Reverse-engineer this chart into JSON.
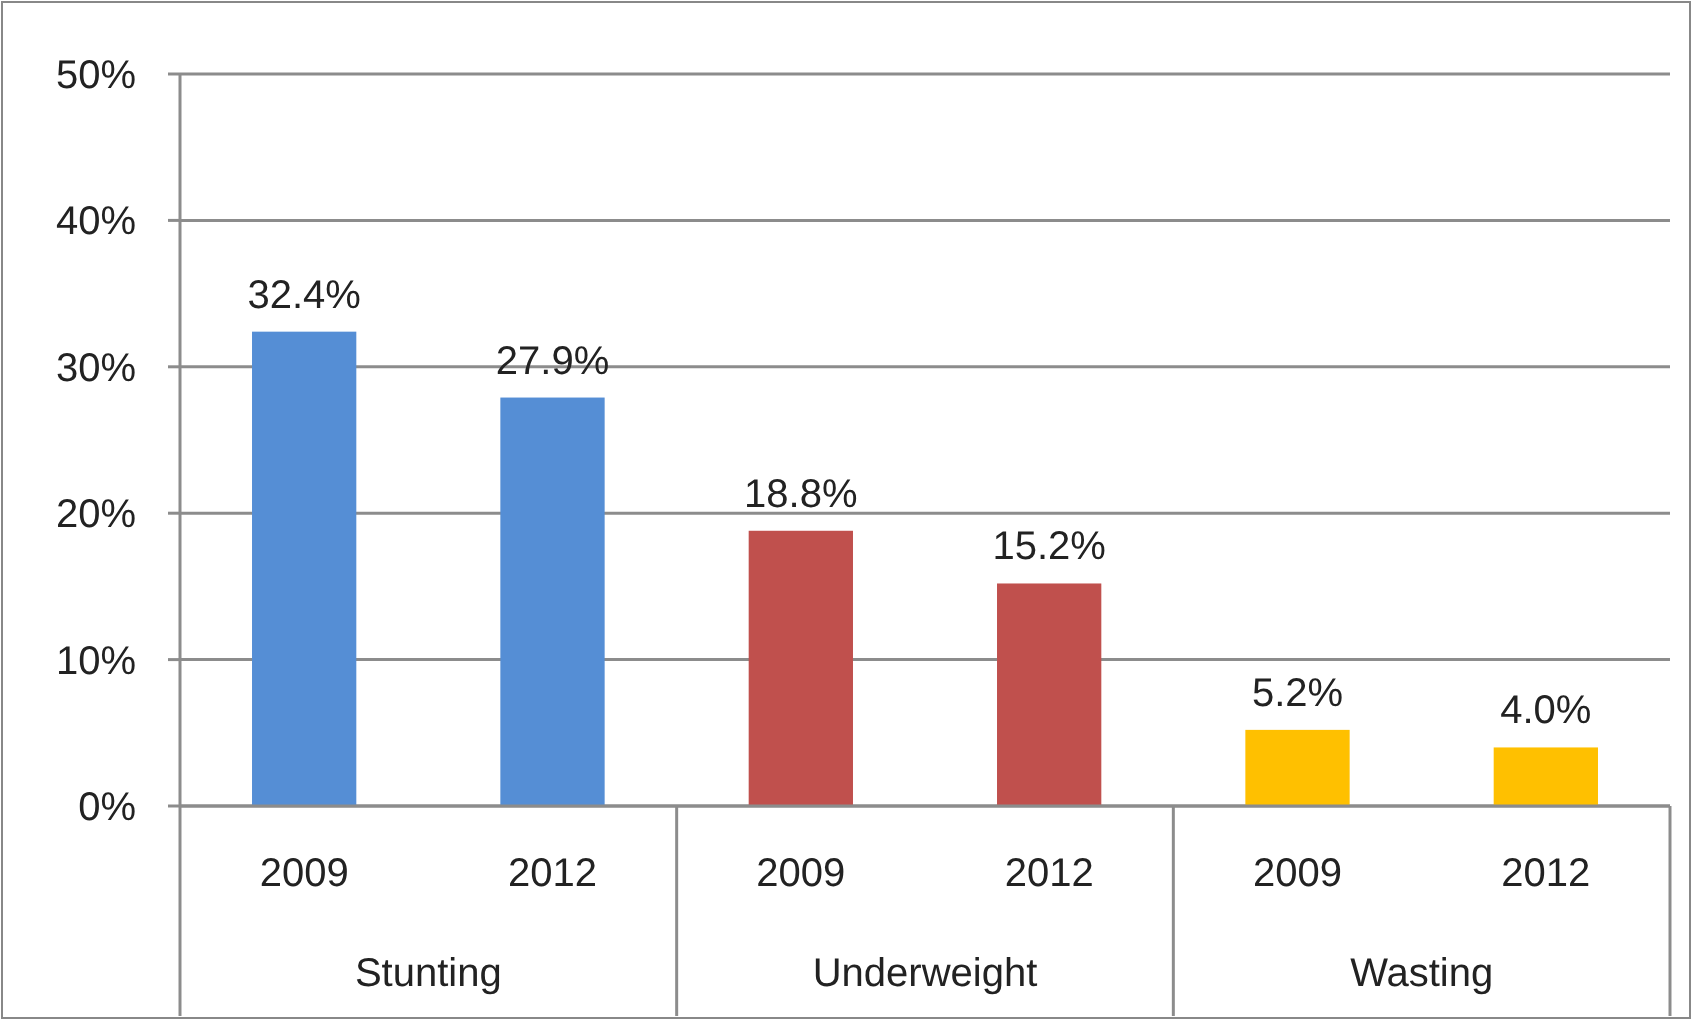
{
  "chart_data": {
    "type": "bar",
    "categories": [
      "2009",
      "2012",
      "2009",
      "2012",
      "2009",
      "2012"
    ],
    "values": [
      32.4,
      27.9,
      18.8,
      15.2,
      5.2,
      4.0
    ],
    "colors": [
      "#558ed5",
      "#558ed5",
      "#c0504d",
      "#c0504d",
      "#ffc000",
      "#ffc000"
    ],
    "value_labels": [
      "32.4%",
      "27.9%",
      "18.8%",
      "15.2%",
      "5.2%",
      "4.0%"
    ],
    "ylim": [
      0,
      50
    ],
    "yticks": [
      {
        "value": 0,
        "label": "0%"
      },
      {
        "value": 10,
        "label": "10%"
      },
      {
        "value": 20,
        "label": "20%"
      },
      {
        "value": 30,
        "label": "30%"
      },
      {
        "value": 40,
        "label": "40%"
      },
      {
        "value": 50,
        "label": "50%"
      }
    ],
    "grid": "y",
    "annotations": [
      "Stunting",
      "Underweight",
      "Wasting"
    ]
  }
}
